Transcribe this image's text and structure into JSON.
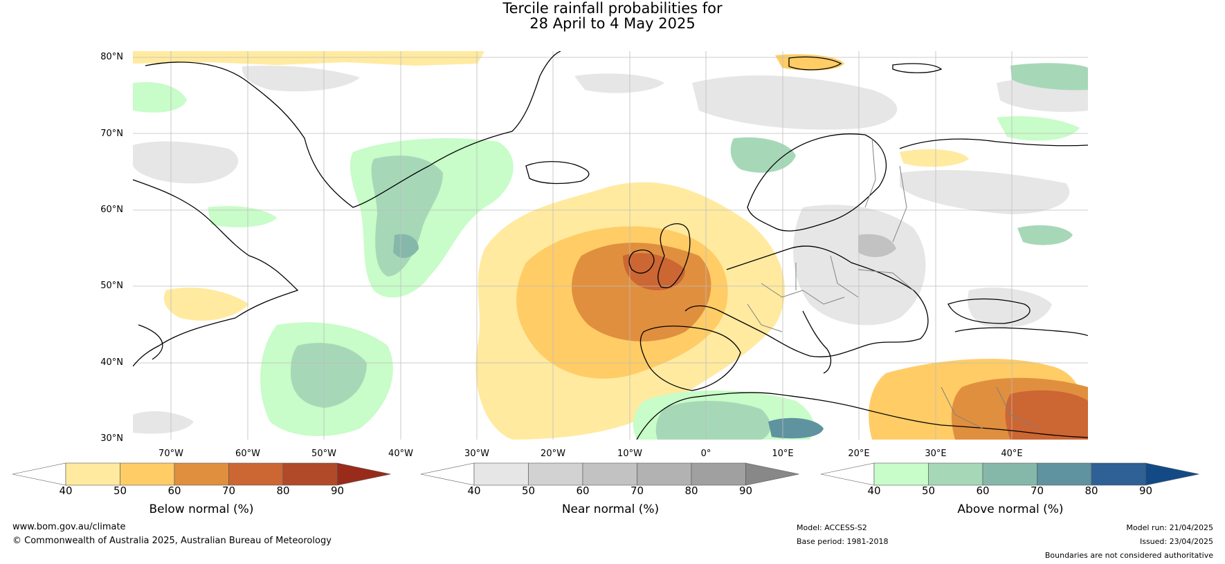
{
  "title": {
    "line1": "Tercile rainfall probabilities for",
    "line2": "28 April to 4 May 2025"
  },
  "map": {
    "lat_labels": [
      "80°N",
      "70°N",
      "60°N",
      "50°N",
      "40°N",
      "30°N"
    ],
    "lon_labels": [
      "70°W",
      "60°W",
      "50°W",
      "40°W",
      "30°W",
      "20°W",
      "10°W",
      "0°",
      "10°E",
      "20°E",
      "30°E",
      "40°E"
    ],
    "ocean_color": "#ffffff",
    "coast_color": "#000000",
    "border_color": "#808080",
    "grid_color": "#bdbdbd"
  },
  "colorbars": [
    {
      "label": "Below normal (%)",
      "ticks": [
        "40",
        "50",
        "60",
        "70",
        "80",
        "90"
      ],
      "colors": [
        "#ffffff",
        "#ffeaa0",
        "#ffcc66",
        "#e08f3f",
        "#cc6633",
        "#b04a28",
        "#992b1b"
      ]
    },
    {
      "label": "Near normal (%)",
      "ticks": [
        "40",
        "50",
        "60",
        "70",
        "80",
        "90"
      ],
      "colors": [
        "#ffffff",
        "#e6e6e6",
        "#d2d2d2",
        "#c2c2c2",
        "#b2b2b2",
        "#a0a0a0",
        "#888888"
      ]
    },
    {
      "label": "Above normal (%)",
      "ticks": [
        "40",
        "50",
        "60",
        "70",
        "80",
        "90"
      ],
      "colors": [
        "#ffffff",
        "#c8fcc8",
        "#a6d8b8",
        "#86b8aa",
        "#5f93a0",
        "#2f6096",
        "#134a86"
      ]
    }
  ],
  "footer": {
    "website": "www.bom.gov.au/climate",
    "copyright": "© Commonwealth of Australia 2025, Australian Bureau of Meteorology",
    "model": "Model: ACCESS-S2",
    "base_period": "Base period: 1981-2018",
    "model_run": "Model run: 21/04/2025",
    "issued": "Issued: 23/04/2025",
    "disclaimer": "Boundaries are not considered authoritative"
  }
}
